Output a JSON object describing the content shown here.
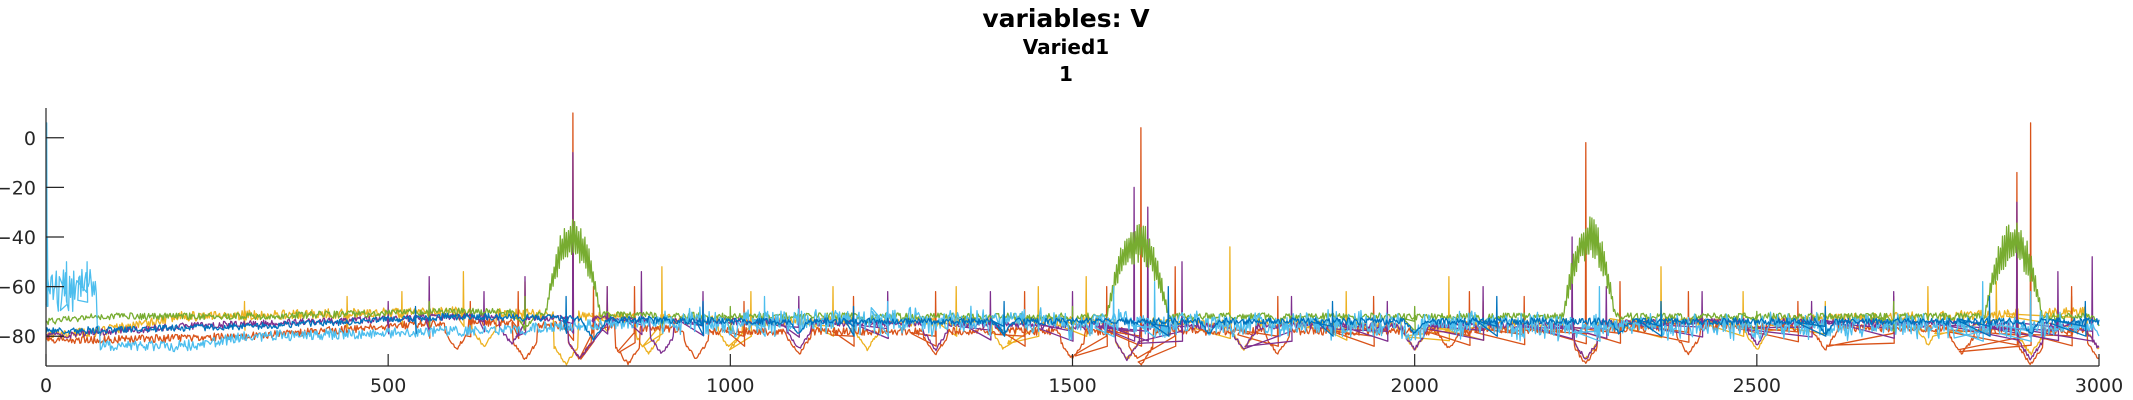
{
  "chart_data": {
    "type": "line",
    "title": "variables: V",
    "subtitle": "Varied1",
    "subtitle2": "1",
    "xlabel": "",
    "ylabel": "",
    "xlim": [
      0,
      3000
    ],
    "ylim": [
      -92,
      12
    ],
    "xticks": [
      0,
      500,
      1000,
      1500,
      2000,
      2500,
      3000
    ],
    "yticks": [
      -80,
      -60,
      -40,
      -20,
      0
    ],
    "grid": false,
    "legend": "none",
    "series": [
      {
        "color": "#EDB120",
        "seed": 11,
        "base": [
          [
            0,
            -80
          ],
          [
            80,
            -78
          ],
          [
            200,
            -72
          ],
          [
            600,
            -70
          ],
          [
            1000,
            -74
          ],
          [
            1500,
            -74
          ],
          [
            2000,
            -76
          ],
          [
            2500,
            -74
          ],
          [
            3000,
            -70
          ]
        ],
        "troughs": [
          [
            640,
            -85
          ],
          [
            760,
            -92
          ],
          [
            880,
            -88
          ],
          [
            1000,
            -86
          ],
          [
            1200,
            -86
          ],
          [
            1400,
            -86
          ],
          [
            1580,
            -90
          ],
          [
            1750,
            -86
          ],
          [
            2000,
            -86
          ],
          [
            2250,
            -90
          ],
          [
            2500,
            -86
          ],
          [
            2750,
            -84
          ],
          [
            2900,
            -88
          ],
          [
            3000,
            -86
          ]
        ],
        "noise": 2.0,
        "spikes": [
          [
            290,
            -66
          ],
          [
            440,
            -64
          ],
          [
            520,
            -62
          ],
          [
            610,
            -54
          ],
          [
            700,
            -58
          ],
          [
            820,
            -60
          ],
          [
            900,
            -52
          ],
          [
            1030,
            -62
          ],
          [
            1150,
            -60
          ],
          [
            1330,
            -60
          ],
          [
            1450,
            -60
          ],
          [
            1520,
            -56
          ],
          [
            1730,
            -44
          ],
          [
            1900,
            -62
          ],
          [
            2050,
            -56
          ],
          [
            2100,
            -66
          ],
          [
            2360,
            -52
          ],
          [
            2480,
            -62
          ],
          [
            2600,
            -66
          ],
          [
            2750,
            -60
          ],
          [
            2850,
            -58
          ],
          [
            2960,
            -64
          ]
        ]
      },
      {
        "color": "#D95319",
        "seed": 22,
        "base": [
          [
            0,
            -82
          ],
          [
            300,
            -80
          ],
          [
            600,
            -74
          ],
          [
            1000,
            -78
          ],
          [
            1500,
            -78
          ],
          [
            2000,
            -78
          ],
          [
            2500,
            -76
          ],
          [
            3000,
            -78
          ]
        ],
        "troughs": [
          [
            600,
            -86
          ],
          [
            700,
            -90
          ],
          [
            780,
            -90
          ],
          [
            850,
            -92
          ],
          [
            950,
            -90
          ],
          [
            1100,
            -88
          ],
          [
            1300,
            -88
          ],
          [
            1500,
            -90
          ],
          [
            1600,
            -92
          ],
          [
            1800,
            -88
          ],
          [
            2050,
            -86
          ],
          [
            2250,
            -92
          ],
          [
            2400,
            -88
          ],
          [
            2600,
            -86
          ],
          [
            2800,
            -88
          ],
          [
            2900,
            -92
          ],
          [
            3000,
            -90
          ]
        ],
        "noise": 1.6,
        "spikes": [
          [
            560,
            -60
          ],
          [
            620,
            -66
          ],
          [
            690,
            -62
          ],
          [
            770,
            10
          ],
          [
            800,
            -60
          ],
          [
            860,
            -60
          ],
          [
            1020,
            -66
          ],
          [
            1180,
            -64
          ],
          [
            1300,
            -62
          ],
          [
            1430,
            -62
          ],
          [
            1550,
            -60
          ],
          [
            1600,
            4
          ],
          [
            1650,
            -52
          ],
          [
            1800,
            -64
          ],
          [
            1940,
            -64
          ],
          [
            2080,
            -62
          ],
          [
            2160,
            -64
          ],
          [
            2250,
            -2
          ],
          [
            2300,
            -58
          ],
          [
            2400,
            -62
          ],
          [
            2560,
            -66
          ],
          [
            2700,
            -64
          ],
          [
            2880,
            -14
          ],
          [
            2900,
            6
          ],
          [
            2960,
            -60
          ]
        ]
      },
      {
        "color": "#7E2F8E",
        "seed": 33,
        "base": [
          [
            0,
            -80
          ],
          [
            200,
            -76
          ],
          [
            600,
            -72
          ],
          [
            1000,
            -74
          ],
          [
            1500,
            -76
          ],
          [
            2000,
            -76
          ],
          [
            2500,
            -74
          ],
          [
            3000,
            -76
          ]
        ],
        "troughs": [
          [
            680,
            -84
          ],
          [
            780,
            -90
          ],
          [
            900,
            -88
          ],
          [
            1100,
            -86
          ],
          [
            1300,
            -86
          ],
          [
            1580,
            -90
          ],
          [
            1750,
            -86
          ],
          [
            2000,
            -86
          ],
          [
            2250,
            -90
          ],
          [
            2500,
            -84
          ],
          [
            2900,
            -90
          ],
          [
            3000,
            -86
          ]
        ],
        "noise": 1.4,
        "spikes": [
          [
            500,
            -66
          ],
          [
            560,
            -56
          ],
          [
            640,
            -62
          ],
          [
            700,
            -56
          ],
          [
            770,
            -6
          ],
          [
            820,
            -60
          ],
          [
            870,
            -54
          ],
          [
            960,
            -62
          ],
          [
            1100,
            -64
          ],
          [
            1230,
            -62
          ],
          [
            1380,
            -62
          ],
          [
            1500,
            -62
          ],
          [
            1590,
            -20
          ],
          [
            1610,
            -28
          ],
          [
            1660,
            -50
          ],
          [
            1820,
            -64
          ],
          [
            1960,
            -66
          ],
          [
            2100,
            -60
          ],
          [
            2230,
            -40
          ],
          [
            2280,
            -60
          ],
          [
            2420,
            -62
          ],
          [
            2580,
            -66
          ],
          [
            2700,
            -62
          ],
          [
            2880,
            -26
          ],
          [
            2940,
            -54
          ],
          [
            2990,
            -48
          ]
        ]
      },
      {
        "color": "#77AC30",
        "seed": 44,
        "base": [
          [
            0,
            -74
          ],
          [
            80,
            -72
          ],
          [
            300,
            -72
          ],
          [
            600,
            -70
          ],
          [
            1000,
            -72
          ],
          [
            1500,
            -72
          ],
          [
            2000,
            -72
          ],
          [
            2500,
            -72
          ],
          [
            3000,
            -72
          ]
        ],
        "troughs": [
          [
            700,
            -78
          ],
          [
            900,
            -76
          ],
          [
            1200,
            -76
          ],
          [
            1500,
            -76
          ],
          [
            1800,
            -76
          ],
          [
            2100,
            -76
          ],
          [
            2400,
            -76
          ],
          [
            2700,
            -76
          ],
          [
            3000,
            -76
          ]
        ],
        "noise": 1.4,
        "bursts": [
          [
            770,
            40,
            -30
          ],
          [
            1595,
            45,
            -32
          ],
          [
            2255,
            38,
            -30
          ],
          [
            2875,
            42,
            -32
          ]
        ],
        "spikes": [
          [
            560,
            -66
          ],
          [
            700,
            -64
          ],
          [
            1000,
            -68
          ],
          [
            1500,
            -68
          ],
          [
            2000,
            -68
          ],
          [
            2700,
            -66
          ],
          [
            2500,
            -70
          ]
        ]
      },
      {
        "color": "#4DBEEE",
        "seed": 55,
        "base": [
          [
            0,
            -62
          ],
          [
            70,
            -60
          ],
          [
            80,
            -84
          ],
          [
            200,
            -84
          ],
          [
            300,
            -80
          ],
          [
            600,
            -78
          ],
          [
            900,
            -74
          ],
          [
            1000,
            -74
          ],
          [
            1500,
            -74
          ],
          [
            2000,
            -76
          ],
          [
            2500,
            -76
          ],
          [
            3000,
            -76
          ]
        ],
        "troughs": [
          [
            300,
            -82
          ],
          [
            700,
            -80
          ],
          [
            1000,
            -80
          ],
          [
            1500,
            -80
          ],
          [
            2000,
            -82
          ],
          [
            2500,
            -80
          ],
          [
            3000,
            -80
          ]
        ],
        "noise": 2.2,
        "fuzz": [
          [
            0,
            80,
            9
          ],
          [
            900,
            2950,
            4
          ]
        ],
        "spikes": [
          [
            1,
            6
          ],
          [
            2,
            -40
          ],
          [
            30,
            -50
          ],
          [
            60,
            -50
          ],
          [
            1050,
            -64
          ],
          [
            1230,
            -66
          ],
          [
            1560,
            -60
          ],
          [
            1620,
            -58
          ],
          [
            2270,
            -60
          ],
          [
            2830,
            -58
          ],
          [
            2900,
            -62
          ]
        ]
      },
      {
        "color": "#0072BD",
        "seed": 66,
        "base": [
          [
            0,
            -78
          ],
          [
            300,
            -76
          ],
          [
            600,
            -72
          ],
          [
            1000,
            -74
          ],
          [
            1500,
            -74
          ],
          [
            2000,
            -74
          ],
          [
            2500,
            -74
          ],
          [
            3000,
            -74
          ]
        ],
        "troughs": [
          [
            800,
            -82
          ],
          [
            1100,
            -80
          ],
          [
            1400,
            -80
          ],
          [
            1700,
            -80
          ],
          [
            2000,
            -80
          ],
          [
            2300,
            -80
          ],
          [
            2600,
            -80
          ],
          [
            2900,
            -80
          ]
        ],
        "noise": 1.4,
        "spikes": [
          [
            540,
            -68
          ],
          [
            760,
            -64
          ],
          [
            960,
            -66
          ],
          [
            1180,
            -68
          ],
          [
            1400,
            -66
          ],
          [
            1640,
            -60
          ],
          [
            1880,
            -66
          ],
          [
            2120,
            -64
          ],
          [
            2360,
            -66
          ],
          [
            2600,
            -68
          ],
          [
            2840,
            -64
          ],
          [
            2980,
            -66
          ]
        ]
      }
    ]
  }
}
